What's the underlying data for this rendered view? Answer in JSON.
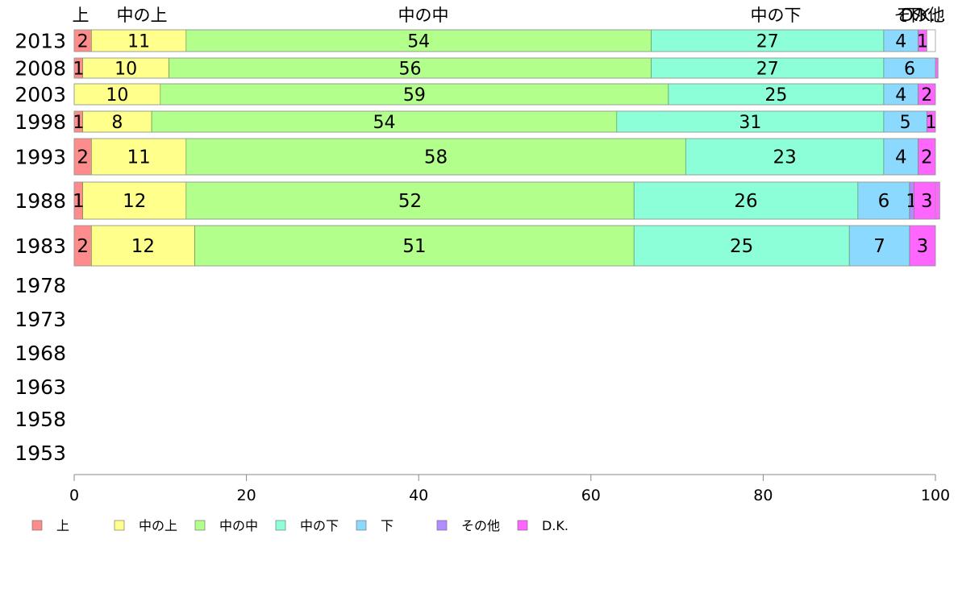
{
  "chart_data": {
    "type": "bar",
    "orientation": "horizontal",
    "stacked": true,
    "categories": [
      "2013",
      "2008",
      "2003",
      "1998",
      "1993",
      "1988",
      "1983",
      "1978",
      "1973",
      "1968",
      "1963",
      "1958",
      "1953"
    ],
    "series": [
      {
        "name": "上",
        "color": "#ff8c8c",
        "values": [
          2,
          1,
          0,
          1,
          2,
          1,
          2,
          null,
          null,
          null,
          null,
          null,
          null
        ]
      },
      {
        "name": "中の上",
        "color": "#ffff8c",
        "values": [
          11,
          10,
          10,
          8,
          11,
          12,
          12,
          null,
          null,
          null,
          null,
          null,
          null
        ]
      },
      {
        "name": "中の中",
        "color": "#b3ff8c",
        "values": [
          54,
          56,
          59,
          54,
          58,
          52,
          51,
          null,
          null,
          null,
          null,
          null,
          null
        ]
      },
      {
        "name": "中の下",
        "color": "#8cffd9",
        "values": [
          27,
          27,
          25,
          31,
          23,
          26,
          25,
          null,
          null,
          null,
          null,
          null,
          null
        ]
      },
      {
        "name": "下",
        "color": "#8cd9ff",
        "values": [
          4,
          6,
          4,
          5,
          4,
          6,
          7,
          null,
          null,
          null,
          null,
          null,
          null
        ]
      },
      {
        "name": "その他",
        "color": "#b38cff",
        "values": [
          0,
          0,
          0,
          0,
          0,
          0.5,
          0,
          null,
          null,
          null,
          null,
          null,
          null
        ]
      },
      {
        "name": "D.K.",
        "color": "#ff66ff",
        "values": [
          1,
          0.3,
          2,
          1,
          2,
          3,
          3,
          null,
          null,
          null,
          null,
          null,
          null
        ]
      }
    ],
    "bar_labels": [
      [
        "2",
        "11",
        "54",
        "27",
        "4",
        "",
        "1"
      ],
      [
        "1",
        "10",
        "56",
        "27",
        "6",
        "",
        ""
      ],
      [
        "",
        "10",
        "59",
        "25",
        "4",
        "",
        "2"
      ],
      [
        "1",
        "8",
        "54",
        "31",
        "5",
        "",
        "1"
      ],
      [
        "2",
        "11",
        "58",
        "23",
        "4",
        "",
        "2"
      ],
      [
        "1",
        "12",
        "52",
        "26",
        "6",
        "1",
        "3"
      ],
      [
        "2",
        "12",
        "51",
        "25",
        "7",
        "",
        "3"
      ]
    ],
    "top_labels": [
      "上",
      "中の上",
      "中の中",
      "中の下",
      "下",
      "その他",
      "D.K..."
    ],
    "xlim": [
      0,
      100
    ],
    "xticks": [
      0,
      20,
      40,
      60,
      80,
      100
    ],
    "grid": false,
    "legend_position": "bottom"
  }
}
